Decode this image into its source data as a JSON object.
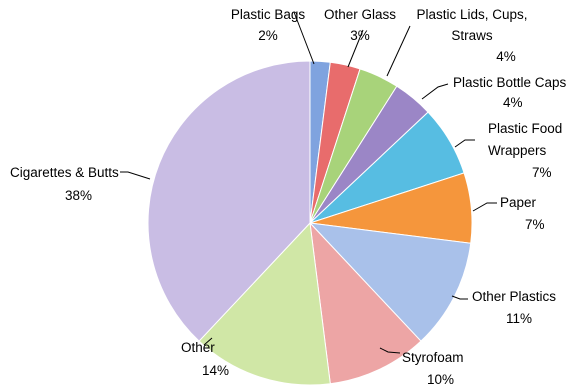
{
  "chart_data": {
    "type": "pie",
    "title": "",
    "start": "12 o'clock",
    "direction": "clockwise",
    "slices": [
      {
        "label": "Plastic Bags",
        "value": 2,
        "value_label": "2%",
        "color": "#7fa3df"
      },
      {
        "label": "Other Glass",
        "value": 3,
        "value_label": "3%",
        "color": "#e86c6c"
      },
      {
        "label": "Plastic Lids, Cups, Straws",
        "value": 4,
        "value_label": "4%",
        "color": "#a8d37a"
      },
      {
        "label": "Plastic Bottle Caps",
        "value": 4,
        "value_label": "4%",
        "color": "#9b86c6"
      },
      {
        "label": "Plastic Food Wrappers",
        "value": 7,
        "value_label": "7%",
        "color": "#57bde2"
      },
      {
        "label": "Paper",
        "value": 7,
        "value_label": "7%",
        "color": "#f5963c"
      },
      {
        "label": "Other Plastics",
        "value": 11,
        "value_label": "11%",
        "color": "#a9c1ea"
      },
      {
        "label": "Styrofoam",
        "value": 10,
        "value_label": "10%",
        "color": "#eda5a5"
      },
      {
        "label": "Other",
        "value": 14,
        "value_label": "14%",
        "color": "#d0e7a6"
      },
      {
        "label": "Cigarettes & Butts",
        "value": 38,
        "value_label": "38%",
        "color": "#c9bde4"
      }
    ]
  }
}
